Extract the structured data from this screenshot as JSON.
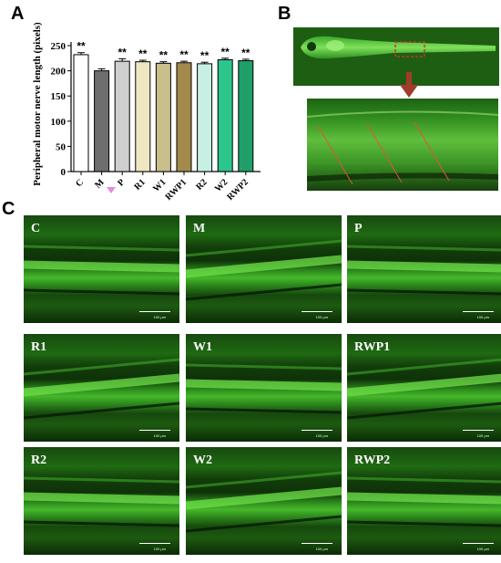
{
  "panels": {
    "a": "A",
    "b": "B",
    "c": "C"
  },
  "chart_data": {
    "type": "bar",
    "ylabel": "Peripheral motor nerve length (pixels)",
    "ylim": [
      0,
      250
    ],
    "yticks": [
      "0",
      "50",
      "100",
      "150",
      "200",
      "250"
    ],
    "categories": [
      "C",
      "M",
      "P",
      "R1",
      "W1",
      "RWP1",
      "R2",
      "W2",
      "RWP2"
    ],
    "values": [
      232,
      200,
      219,
      218,
      215,
      216,
      214,
      222,
      220
    ],
    "errors": [
      4,
      4,
      5,
      3,
      3,
      3,
      3,
      3,
      3
    ],
    "significance": [
      "**",
      "",
      "**",
      "**",
      "**",
      "**",
      "**",
      "**",
      "**"
    ],
    "colors": [
      "#ffffff",
      "#6e6e6e",
      "#cfcfcf",
      "#efe6c2",
      "#c9bf8a",
      "#a38a4c",
      "#c8efe3",
      "#2cc58c",
      "#1fa06a"
    ]
  },
  "grid": {
    "labels": [
      "C",
      "M",
      "P",
      "R1",
      "W1",
      "RWP1",
      "R2",
      "W2",
      "RWP2"
    ],
    "scale_text": "100 μm"
  }
}
